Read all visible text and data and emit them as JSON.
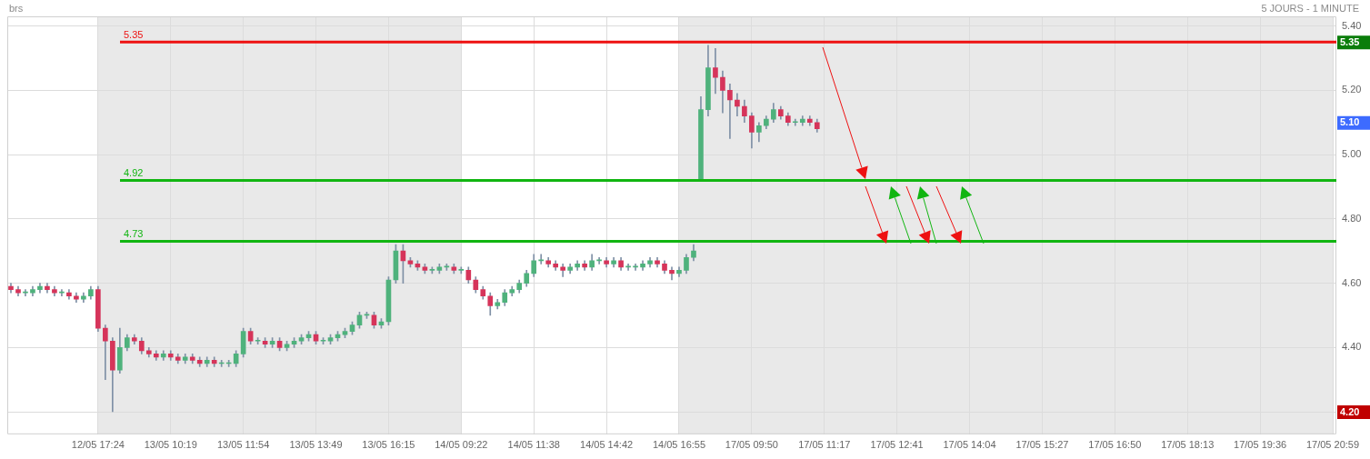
{
  "chart_data": {
    "type": "candlestick",
    "title": "brs",
    "subtitle": "5 JOURS - 1 MINUTE",
    "categories": [
      null,
      null,
      null,
      null,
      null,
      null,
      null,
      null,
      null,
      null,
      null,
      null,
      "12/05 17:24",
      null,
      null,
      null,
      null,
      null,
      null,
      null,
      null,
      null,
      "13/05 10:19",
      null,
      null,
      null,
      null,
      null,
      null,
      null,
      null,
      null,
      "13/05 11:54",
      null,
      null,
      null,
      null,
      null,
      null,
      null,
      null,
      null,
      "13/05 13:49",
      null,
      null,
      null,
      null,
      null,
      null,
      null,
      null,
      null,
      "13/05 16:15",
      null,
      null,
      null,
      null,
      null,
      null,
      null,
      null,
      null,
      "14/05 09:22",
      null,
      null,
      null,
      null,
      null,
      null,
      null,
      null,
      null,
      "14/05 11:38",
      null,
      null,
      null,
      null,
      null,
      null,
      null,
      null,
      null,
      "14/05 14:42",
      null,
      null,
      null,
      null,
      null,
      null,
      null,
      null,
      null,
      "14/05 16:55",
      null,
      null,
      null,
      null,
      null,
      null,
      null,
      null,
      null,
      "17/05 09:50",
      null,
      null,
      null,
      null,
      null,
      null,
      null,
      null,
      null,
      "17/05 11:17",
      null,
      null,
      null,
      null,
      null,
      null,
      null,
      null,
      null,
      "17/05 12:41",
      null,
      null,
      null,
      null,
      null,
      null,
      null,
      null,
      null,
      "17/05 14:04",
      null,
      null,
      null,
      null,
      null,
      null,
      null,
      null,
      null,
      "17/05 15:27",
      null,
      null,
      null,
      null,
      null,
      null,
      null,
      null,
      null,
      "17/05 16:50",
      null,
      null,
      null,
      null,
      null,
      null,
      null,
      null,
      null,
      "17/05 18:13",
      null,
      null,
      null,
      null,
      null,
      null,
      null,
      null,
      null,
      "17/05 19:36",
      null,
      null,
      null,
      null,
      null,
      null,
      null,
      null,
      null,
      "17/05 20:59"
    ],
    "ohlc": [
      [
        4.59,
        4.6,
        4.57,
        4.58
      ],
      [
        4.58,
        4.59,
        4.56,
        4.57
      ],
      [
        4.57,
        4.58,
        4.56,
        4.57
      ],
      [
        4.57,
        4.59,
        4.56,
        4.58
      ],
      [
        4.58,
        4.6,
        4.57,
        4.59
      ],
      [
        4.59,
        4.6,
        4.57,
        4.58
      ],
      [
        4.58,
        4.59,
        4.56,
        4.57
      ],
      [
        4.57,
        4.58,
        4.56,
        4.57
      ],
      [
        4.57,
        4.58,
        4.55,
        4.56
      ],
      [
        4.56,
        4.57,
        4.54,
        4.55
      ],
      [
        4.55,
        4.57,
        4.54,
        4.56
      ],
      [
        4.56,
        4.59,
        4.55,
        4.58
      ],
      [
        4.58,
        4.59,
        4.45,
        4.46
      ],
      [
        4.46,
        4.47,
        4.3,
        4.42
      ],
      [
        4.42,
        4.43,
        4.2,
        4.33
      ],
      [
        4.33,
        4.46,
        4.32,
        4.4
      ],
      [
        4.4,
        4.44,
        4.39,
        4.43
      ],
      [
        4.43,
        4.44,
        4.41,
        4.42
      ],
      [
        4.42,
        4.43,
        4.38,
        4.39
      ],
      [
        4.39,
        4.4,
        4.37,
        4.38
      ],
      [
        4.38,
        4.39,
        4.36,
        4.37
      ],
      [
        4.37,
        4.39,
        4.36,
        4.38
      ],
      [
        4.38,
        4.39,
        4.36,
        4.37
      ],
      [
        4.37,
        4.38,
        4.35,
        4.36
      ],
      [
        4.36,
        4.38,
        4.35,
        4.37
      ],
      [
        4.37,
        4.38,
        4.35,
        4.36
      ],
      [
        4.36,
        4.37,
        4.34,
        4.35
      ],
      [
        4.35,
        4.37,
        4.34,
        4.36
      ],
      [
        4.36,
        4.37,
        4.34,
        4.35
      ],
      [
        4.35,
        4.36,
        4.34,
        4.35
      ],
      [
        4.35,
        4.36,
        4.34,
        4.35
      ],
      [
        4.35,
        4.39,
        4.34,
        4.38
      ],
      [
        4.38,
        4.46,
        4.37,
        4.45
      ],
      [
        4.45,
        4.46,
        4.41,
        4.42
      ],
      [
        4.42,
        4.43,
        4.41,
        4.42
      ],
      [
        4.42,
        4.43,
        4.4,
        4.41
      ],
      [
        4.41,
        4.43,
        4.4,
        4.42
      ],
      [
        4.42,
        4.43,
        4.39,
        4.4
      ],
      [
        4.4,
        4.42,
        4.39,
        4.41
      ],
      [
        4.41,
        4.43,
        4.4,
        4.42
      ],
      [
        4.42,
        4.44,
        4.41,
        4.43
      ],
      [
        4.43,
        4.45,
        4.42,
        4.44
      ],
      [
        4.44,
        4.45,
        4.41,
        4.42
      ],
      [
        4.42,
        4.43,
        4.41,
        4.42
      ],
      [
        4.42,
        4.44,
        4.41,
        4.43
      ],
      [
        4.43,
        4.45,
        4.42,
        4.44
      ],
      [
        4.44,
        4.46,
        4.43,
        4.45
      ],
      [
        4.45,
        4.48,
        4.44,
        4.47
      ],
      [
        4.47,
        4.51,
        4.46,
        4.5
      ],
      [
        4.5,
        4.51,
        4.49,
        4.5
      ],
      [
        4.5,
        4.51,
        4.46,
        4.47
      ],
      [
        4.47,
        4.49,
        4.46,
        4.48
      ],
      [
        4.48,
        4.62,
        4.47,
        4.61
      ],
      [
        4.61,
        4.72,
        4.6,
        4.7
      ],
      [
        4.7,
        4.72,
        4.6,
        4.67
      ],
      [
        4.67,
        4.68,
        4.65,
        4.66
      ],
      [
        4.66,
        4.67,
        4.64,
        4.65
      ],
      [
        4.65,
        4.66,
        4.63,
        4.64
      ],
      [
        4.64,
        4.65,
        4.63,
        4.64
      ],
      [
        4.64,
        4.66,
        4.63,
        4.65
      ],
      [
        4.65,
        4.66,
        4.64,
        4.65
      ],
      [
        4.65,
        4.66,
        4.63,
        4.64
      ],
      [
        4.64,
        4.65,
        4.63,
        4.64
      ],
      [
        4.64,
        4.65,
        4.6,
        4.61
      ],
      [
        4.61,
        4.62,
        4.57,
        4.58
      ],
      [
        4.58,
        4.59,
        4.55,
        4.56
      ],
      [
        4.56,
        4.57,
        4.5,
        4.53
      ],
      [
        4.53,
        4.55,
        4.52,
        4.54
      ],
      [
        4.54,
        4.58,
        4.53,
        4.57
      ],
      [
        4.57,
        4.59,
        4.56,
        4.58
      ],
      [
        4.58,
        4.61,
        4.57,
        4.6
      ],
      [
        4.6,
        4.64,
        4.59,
        4.63
      ],
      [
        4.63,
        4.69,
        4.62,
        4.67
      ],
      [
        4.67,
        4.69,
        4.66,
        4.67
      ],
      [
        4.67,
        4.68,
        4.65,
        4.66
      ],
      [
        4.66,
        4.67,
        4.64,
        4.65
      ],
      [
        4.65,
        4.66,
        4.62,
        4.64
      ],
      [
        4.64,
        4.66,
        4.63,
        4.65
      ],
      [
        4.65,
        4.67,
        4.64,
        4.66
      ],
      [
        4.66,
        4.67,
        4.64,
        4.65
      ],
      [
        4.65,
        4.69,
        4.64,
        4.67
      ],
      [
        4.67,
        4.68,
        4.66,
        4.67
      ],
      [
        4.67,
        4.68,
        4.65,
        4.66
      ],
      [
        4.66,
        4.68,
        4.65,
        4.67
      ],
      [
        4.67,
        4.68,
        4.64,
        4.65
      ],
      [
        4.65,
        4.66,
        4.64,
        4.65
      ],
      [
        4.65,
        4.66,
        4.64,
        4.65
      ],
      [
        4.65,
        4.67,
        4.64,
        4.66
      ],
      [
        4.66,
        4.68,
        4.65,
        4.67
      ],
      [
        4.67,
        4.68,
        4.65,
        4.66
      ],
      [
        4.66,
        4.67,
        4.63,
        4.64
      ],
      [
        4.64,
        4.65,
        4.61,
        4.63
      ],
      [
        4.63,
        4.65,
        4.62,
        4.64
      ],
      [
        4.64,
        4.69,
        4.63,
        4.68
      ],
      [
        4.68,
        4.72,
        4.67,
        4.7
      ],
      [
        4.92,
        5.18,
        4.92,
        5.14
      ],
      [
        5.14,
        5.34,
        5.12,
        5.27
      ],
      [
        5.27,
        5.33,
        5.19,
        5.24
      ],
      [
        5.24,
        5.26,
        5.13,
        5.2
      ],
      [
        5.2,
        5.22,
        5.05,
        5.17
      ],
      [
        5.17,
        5.19,
        5.12,
        5.15
      ],
      [
        5.15,
        5.17,
        5.1,
        5.12
      ],
      [
        5.12,
        5.13,
        5.02,
        5.07
      ],
      [
        5.07,
        5.1,
        5.04,
        5.09
      ],
      [
        5.09,
        5.12,
        5.08,
        5.11
      ],
      [
        5.11,
        5.16,
        5.1,
        5.14
      ],
      [
        5.14,
        5.15,
        5.11,
        5.12
      ],
      [
        5.12,
        5.13,
        5.09,
        5.1
      ],
      [
        5.1,
        5.11,
        5.09,
        5.1
      ],
      [
        5.1,
        5.12,
        5.09,
        5.11
      ],
      [
        5.11,
        5.12,
        5.09,
        5.1
      ],
      [
        5.1,
        5.11,
        5.07,
        5.08
      ],
      null,
      null,
      null,
      null,
      null,
      null,
      null,
      null,
      null,
      null,
      null,
      null,
      null,
      null,
      null,
      null,
      null,
      null,
      null,
      null,
      null,
      null,
      null,
      null,
      null,
      null,
      null,
      null,
      null,
      null,
      null,
      null,
      null,
      null,
      null,
      null,
      null,
      null,
      null,
      null,
      null,
      null,
      null,
      null,
      null,
      null,
      null,
      null,
      null,
      null,
      null,
      null,
      null,
      null,
      null,
      null,
      null,
      null,
      null,
      null,
      null,
      null,
      null,
      null,
      null,
      null,
      null,
      null,
      null,
      null,
      null
    ],
    "colors": [
      "#d6345a",
      "#d6345a",
      "#4fb27c",
      "#4fb27c",
      "#4fb27c",
      "#d6345a",
      "#d6345a",
      "#4fb27c",
      "#d6345a",
      "#d6345a",
      "#4fb27c",
      "#4fb27c",
      "#d6345a",
      "#d6345a",
      "#d6345a",
      "#4fb27c",
      "#4fb27c",
      "#d6345a",
      "#d6345a",
      "#d6345a",
      "#d6345a",
      "#4fb27c",
      "#d6345a",
      "#d6345a",
      "#4fb27c",
      "#d6345a",
      "#d6345a",
      "#4fb27c",
      "#d6345a",
      "#4fb27c",
      "#4fb27c",
      "#4fb27c",
      "#4fb27c",
      "#d6345a",
      "#4fb27c",
      "#d6345a",
      "#4fb27c",
      "#d6345a",
      "#4fb27c",
      "#4fb27c",
      "#4fb27c",
      "#4fb27c",
      "#d6345a",
      "#4fb27c",
      "#4fb27c",
      "#4fb27c",
      "#4fb27c",
      "#4fb27c",
      "#4fb27c",
      "#4fb27c",
      "#d6345a",
      "#4fb27c",
      "#4fb27c",
      "#4fb27c",
      "#d6345a",
      "#d6345a",
      "#d6345a",
      "#d6345a",
      "#4fb27c",
      "#4fb27c",
      "#4fb27c",
      "#d6345a",
      "#4fb27c",
      "#d6345a",
      "#d6345a",
      "#d6345a",
      "#d6345a",
      "#4fb27c",
      "#4fb27c",
      "#4fb27c",
      "#4fb27c",
      "#4fb27c",
      "#4fb27c",
      "#4fb27c",
      "#d6345a",
      "#d6345a",
      "#d6345a",
      "#4fb27c",
      "#4fb27c",
      "#d6345a",
      "#4fb27c",
      "#4fb27c",
      "#d6345a",
      "#4fb27c",
      "#d6345a",
      "#4fb27c",
      "#4fb27c",
      "#4fb27c",
      "#4fb27c",
      "#d6345a",
      "#d6345a",
      "#d6345a",
      "#4fb27c",
      "#4fb27c",
      "#4fb27c",
      "#4fb27c",
      "#4fb27c",
      "#d6345a",
      "#d6345a",
      "#d6345a",
      "#d6345a",
      "#d6345a",
      "#d6345a",
      "#4fb27c",
      "#4fb27c",
      "#4fb27c",
      "#d6345a",
      "#d6345a",
      "#4fb27c",
      "#4fb27c",
      "#d6345a",
      "#d6345a",
      null,
      null,
      null,
      null,
      null,
      null,
      null,
      null,
      null,
      null,
      null,
      null,
      null,
      null,
      null,
      null,
      null,
      null,
      null,
      null,
      null,
      null,
      null,
      null,
      null,
      null,
      null,
      null,
      null,
      null,
      null,
      null,
      null,
      null,
      null,
      null,
      null,
      null,
      null,
      null,
      null,
      null,
      null,
      null,
      null,
      null,
      null,
      null,
      null,
      null,
      null,
      null,
      null,
      null,
      null,
      null,
      null,
      null,
      null,
      null,
      null,
      null,
      null,
      null,
      null,
      null,
      null,
      null,
      null,
      null,
      null
    ],
    "ylim": [
      4.13,
      5.43
    ],
    "yticks": [
      {
        "value": 4.2,
        "label": null
      },
      {
        "value": 4.4,
        "label": "4.40"
      },
      {
        "value": 4.6,
        "label": "4.60"
      },
      {
        "value": 4.8,
        "label": "4.80"
      },
      {
        "value": 5.0,
        "label": "5.00"
      },
      {
        "value": 5.2,
        "label": "5.20"
      },
      {
        "value": 5.4,
        "label": "5.40"
      }
    ],
    "ref_lines": [
      {
        "axis": "y",
        "value": 5.35,
        "label": "5.35",
        "color": "#ee1111"
      },
      {
        "axis": "y",
        "value": 4.92,
        "label": "4.92",
        "color": "#11b511"
      },
      {
        "axis": "y",
        "value": 4.73,
        "label": "4.73",
        "color": "#11b511"
      }
    ],
    "bands": [
      {
        "axis": "x",
        "from": "12/05 17:24",
        "to": "14/05 09:22",
        "color": "#e9e9e9"
      },
      {
        "axis": "x",
        "from": "14/05 16:55",
        "to": "17/05 20:59",
        "color": "#e9e9e9"
      }
    ],
    "annotations": [
      "5.35",
      "5.10",
      "4.20"
    ],
    "grid": true,
    "legend": false
  }
}
